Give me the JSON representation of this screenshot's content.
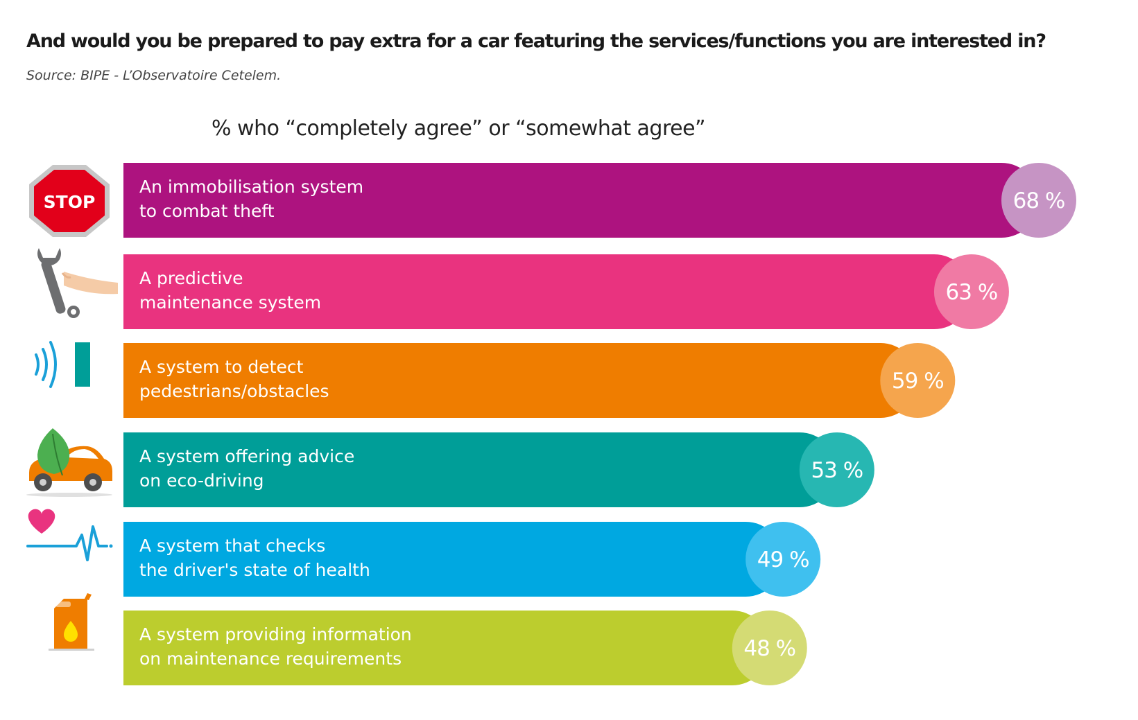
{
  "header": {
    "title": "And would you be prepared to pay extra for a car featuring the services/functions you are interested in?",
    "source": "Source: BIPE - L’Observatoire Cetelem."
  },
  "chart_data": {
    "type": "bar",
    "orientation": "horizontal",
    "title": "And would you be prepared to pay extra for a car featuring the services/functions you are interested in?",
    "subtitle": "% who “completely agree” or “somewhat agree”",
    "categories": [
      [
        "An immobilisation system",
        "to combat theft"
      ],
      [
        "A predictive",
        "maintenance system"
      ],
      [
        "A system to detect",
        "pedestrians/obstacles"
      ],
      [
        "A system offering advice",
        "on eco-driving"
      ],
      [
        "A system that checks",
        "the driver's state of health"
      ],
      [
        "A system providing information",
        "on maintenance requirements"
      ]
    ],
    "values": [
      68,
      63,
      59,
      53,
      49,
      48
    ],
    "value_labels": [
      "68 %",
      "63 %",
      "59 %",
      "53 %",
      "49 %",
      "48 %"
    ],
    "unit": "%",
    "bar_colors": [
      "#ad137f",
      "#e9337f",
      "#ef7d00",
      "#009e98",
      "#00a8e1",
      "#bccd2e"
    ],
    "badge_colors": [
      "#c694c4",
      "#f07aa4",
      "#f5a54d",
      "#27b7b2",
      "#3fc0ef",
      "#d4db74"
    ],
    "icons": [
      "stop-sign-icon",
      "wrench-icon",
      "sensor-signal-icon",
      "eco-car-icon",
      "heartbeat-icon",
      "fuel-can-icon"
    ],
    "grid": false,
    "legend": "none"
  }
}
